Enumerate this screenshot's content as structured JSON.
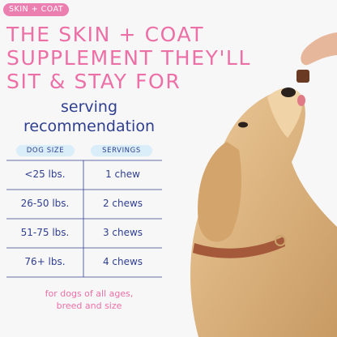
{
  "badge": "SKIN + COAT",
  "headline": [
    "THE SKIN + COAT",
    "SUPPLEMENT THEY'LL",
    "SIT & STAY FOR"
  ],
  "subtitle": [
    "serving",
    "recommendation"
  ],
  "table": {
    "headers": [
      "DOG SIZE",
      "SERVINGS"
    ],
    "rows": [
      [
        "<25 lbs.",
        "1 chew"
      ],
      [
        "26-50 lbs.",
        "2 chews"
      ],
      [
        "51-75 lbs.",
        "3 chews"
      ],
      [
        "76+ lbs.",
        "4 chews"
      ]
    ]
  },
  "footnote": [
    "for dogs of all ages,",
    "breed and size"
  ]
}
